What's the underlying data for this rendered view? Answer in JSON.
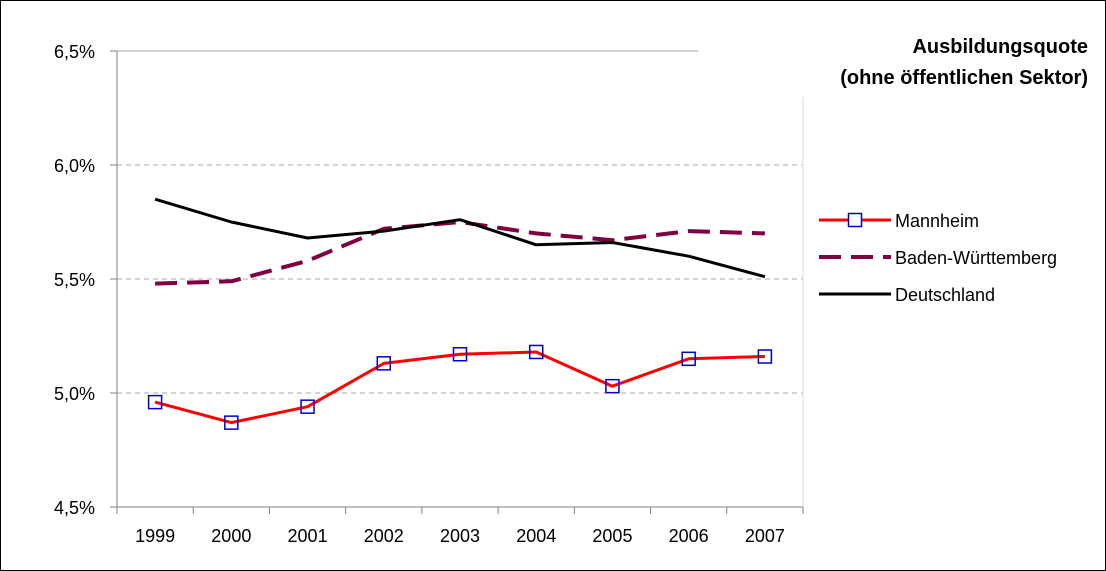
{
  "chart_data": {
    "type": "line",
    "title_lines": [
      "Ausbildungsquote",
      "(ohne öffentlichen Sektor)"
    ],
    "categories": [
      "1999",
      "2000",
      "2001",
      "2002",
      "2003",
      "2004",
      "2005",
      "2006",
      "2007"
    ],
    "ylim": [
      0.045,
      0.065
    ],
    "yticks": [
      {
        "value": 0.065,
        "label": "6,5%"
      },
      {
        "value": 0.06,
        "label": "6,0%"
      },
      {
        "value": 0.055,
        "label": "5,5%"
      },
      {
        "value": 0.05,
        "label": "5,0%"
      },
      {
        "value": 0.045,
        "label": "4,5%"
      }
    ],
    "grid": true,
    "legend_position": "right",
    "series": [
      {
        "name": "Mannheim",
        "values": [
          0.0496,
          0.0487,
          0.0494,
          0.0513,
          0.0517,
          0.0518,
          0.0503,
          0.0515,
          0.0516
        ],
        "color": "#ff0000",
        "line_style": "solid",
        "marker": "square",
        "marker_color": "#0000cc"
      },
      {
        "name": "Baden-Württemberg",
        "values": [
          0.0548,
          0.0549,
          0.0558,
          0.0572,
          0.0575,
          0.057,
          0.0567,
          0.0571,
          0.057
        ],
        "color": "#800040",
        "line_style": "dashed",
        "marker": "none"
      },
      {
        "name": "Deutschland",
        "values": [
          0.0585,
          0.0575,
          0.0568,
          0.0571,
          0.0576,
          0.0565,
          0.0566,
          0.056,
          0.0551
        ],
        "color": "#000000",
        "line_style": "solid",
        "marker": "none"
      }
    ]
  }
}
